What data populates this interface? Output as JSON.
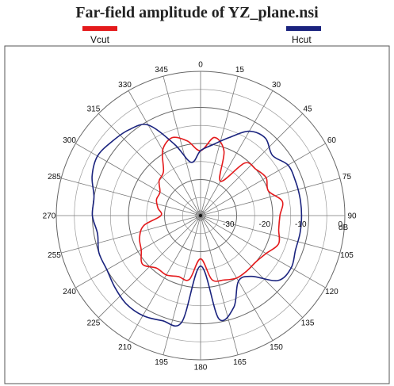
{
  "chart_data": {
    "type": "polar-line",
    "title": "Far-field amplitude of YZ_plane.nsi",
    "angle_ticks": [
      "0",
      "15",
      "30",
      "45",
      "60",
      "75",
      "90",
      "105",
      "120",
      "135",
      "150",
      "165",
      "180",
      "195",
      "210",
      "225",
      "240",
      "255",
      "270",
      "285",
      "300",
      "315",
      "330",
      "345"
    ],
    "radial_unit": "dB",
    "radial_ticks": [
      {
        "value": -30,
        "label": "-30"
      },
      {
        "value": -20,
        "label": "-20"
      },
      {
        "value": -10,
        "label": "-10"
      },
      {
        "value": 0,
        "label": "0"
      }
    ],
    "rlim": [
      -40,
      0
    ],
    "grid": true,
    "series": [
      {
        "name": "Vcut",
        "color": "#e41a1c",
        "angles": [
          0,
          10,
          20,
          30,
          40,
          50,
          60,
          70,
          80,
          90,
          100,
          110,
          120,
          130,
          140,
          150,
          160,
          170,
          180,
          190,
          200,
          210,
          220,
          230,
          240,
          250,
          260,
          270,
          280,
          290,
          300,
          310,
          320,
          330,
          340,
          350
        ],
        "values": [
          -22,
          -18,
          -21,
          -29,
          -21,
          -20,
          -19,
          -20,
          -17,
          -18,
          -18,
          -17,
          -19,
          -20,
          -20,
          -20,
          -21,
          -22,
          -28,
          -22,
          -22,
          -21,
          -21,
          -19,
          -21,
          -22,
          -24,
          -29,
          -28,
          -27,
          -27,
          -25,
          -24,
          -19,
          -17,
          -19
        ]
      },
      {
        "name": "Hcut",
        "color": "#1a237e",
        "angles": [
          0,
          10,
          20,
          30,
          40,
          50,
          60,
          70,
          80,
          90,
          100,
          110,
          120,
          130,
          140,
          150,
          160,
          170,
          180,
          190,
          200,
          210,
          220,
          230,
          240,
          250,
          260,
          270,
          280,
          290,
          300,
          310,
          320,
          330,
          340,
          350
        ],
        "values": [
          -22,
          -20,
          -17,
          -13,
          -12,
          -14,
          -12,
          -12,
          -12,
          -12,
          -12,
          -12,
          -11,
          -12,
          -18,
          -19,
          -13,
          -11,
          -26,
          -10,
          -9,
          -8,
          -8,
          -9,
          -10,
          -10,
          -11,
          -10,
          -10,
          -8,
          -7,
          -8,
          -9,
          -11,
          -19,
          -25
        ]
      }
    ]
  },
  "legend": {
    "vcut_label": "Vcut",
    "hcut_label": "Hcut",
    "vcut_color": "#e41a1c",
    "hcut_color": "#1a237e"
  }
}
